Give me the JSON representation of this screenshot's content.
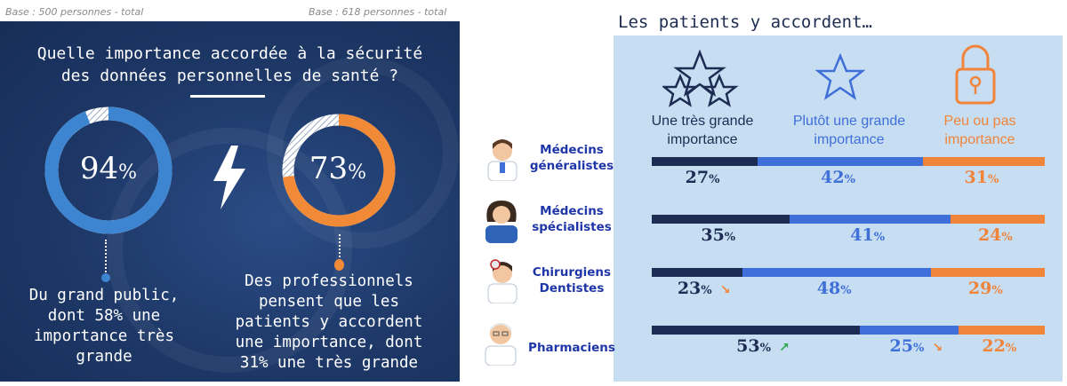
{
  "bases": {
    "left": "Base : 500 personnes - total",
    "right": "Base : 618 personnes - total"
  },
  "left": {
    "question_line1": "Quelle importance accordée à la sécurité",
    "question_line2": "des données personnelles de santé ?",
    "public": {
      "value": "94",
      "value_num": 94,
      "unit": "%",
      "color": "#3d85d0",
      "lines": [
        "Du grand public,",
        "dont 58% une",
        "importance très",
        "grande"
      ]
    },
    "pros": {
      "value": "73",
      "value_num": 73,
      "unit": "%",
      "color": "#f08a36",
      "lines": [
        "Des professionnels",
        "pensent que les",
        "patients y accordent",
        "une importance, dont",
        "31% une très grande"
      ]
    }
  },
  "right": {
    "title": "Les patients y accordent…",
    "columns": [
      {
        "line1": "Une très grande",
        "line2": "importance",
        "color": "#1d2c52",
        "icon": "two-stars-icon"
      },
      {
        "line1": "Plutôt une grande",
        "line2": "importance",
        "color": "#3f6fd8",
        "icon": "star-icon"
      },
      {
        "line1": "Peu ou pas",
        "line2": "importance",
        "color": "#f0843a",
        "icon": "padlock-icon"
      }
    ]
  },
  "chart_data": {
    "type": "bar",
    "stacked": true,
    "orientation": "horizontal",
    "categories": [
      "Médecins généralistes",
      "Médecins spécialistes",
      "Chirurgiens Dentistes",
      "Pharmaciens"
    ],
    "series": [
      {
        "name": "Une très grande importance",
        "values": [
          27,
          35,
          23,
          53
        ],
        "color": "#1d2c52"
      },
      {
        "name": "Plutôt une grande importance",
        "values": [
          42,
          41,
          48,
          25
        ],
        "color": "#3f6fd8"
      },
      {
        "name": "Peu ou pas importance",
        "values": [
          31,
          24,
          29,
          22
        ],
        "color": "#f0843a"
      }
    ],
    "category_labels": [
      [
        "Médecins",
        "généralistes"
      ],
      [
        "Médecins",
        "spécialistes"
      ],
      [
        "Chirurgiens",
        "Dentistes"
      ],
      [
        "Pharmaciens"
      ]
    ],
    "trends": [
      [
        null,
        null,
        null
      ],
      [
        null,
        null,
        null
      ],
      [
        "down",
        null,
        null
      ],
      [
        "up",
        "down",
        null
      ]
    ],
    "unit": "%"
  },
  "colors": {
    "dark_navy": "#1d2c52",
    "blue": "#3f6fd8",
    "orange": "#f0843a",
    "panel_bg": "#c7def2",
    "left_bg": "#1d3766",
    "trend_up": "#2aa84a",
    "trend_down": "#f0843a"
  }
}
